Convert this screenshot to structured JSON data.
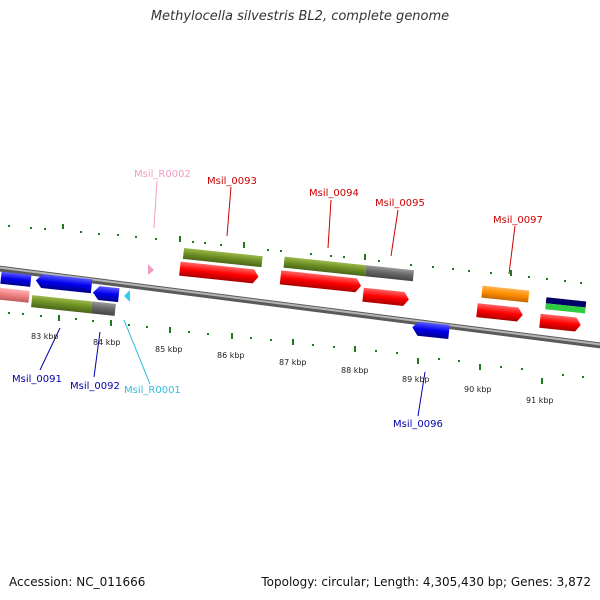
{
  "title": "Methylocella silvestris BL2, complete genome",
  "footer": {
    "accession": "Accession: NC_011666",
    "summary": "Topology: circular; Length: 4,305,430 bp; Genes: 3,872"
  },
  "scale_labels": [
    "83 kbp",
    "84 kbp",
    "85 kbp",
    "86 kbp",
    "87 kbp",
    "88 kbp",
    "89 kbp",
    "90 kbp",
    "91 kbp"
  ],
  "gene_labels": [
    {
      "text": "Msil_R0002",
      "color": "#f19dc2"
    },
    {
      "text": "Msil_0093",
      "color": "#cc0000"
    },
    {
      "text": "Msil_0094",
      "color": "#cc0000"
    },
    {
      "text": "Msil_0095",
      "color": "#cc0000"
    },
    {
      "text": "Msil_0097",
      "color": "#cc0000"
    },
    {
      "text": "Msil_0091",
      "color": "#0000aa"
    },
    {
      "text": "Msil_0092",
      "color": "#0000aa"
    },
    {
      "text": "Msil_R0001",
      "color": "#33bbdd"
    },
    {
      "text": "Msil_0096",
      "color": "#0000aa"
    }
  ],
  "colors": {
    "backbone": "#8a8a8a",
    "tick": "#1f7a1f",
    "forward_cds": "#ff0000",
    "reverse_cds": "#0000ee",
    "gene_olive": "#6b8e23",
    "gene_gray": "#666666",
    "orange": "#ff8c00",
    "rrna_pink": "#f19dc2",
    "trna_cyan": "#33ccee"
  }
}
